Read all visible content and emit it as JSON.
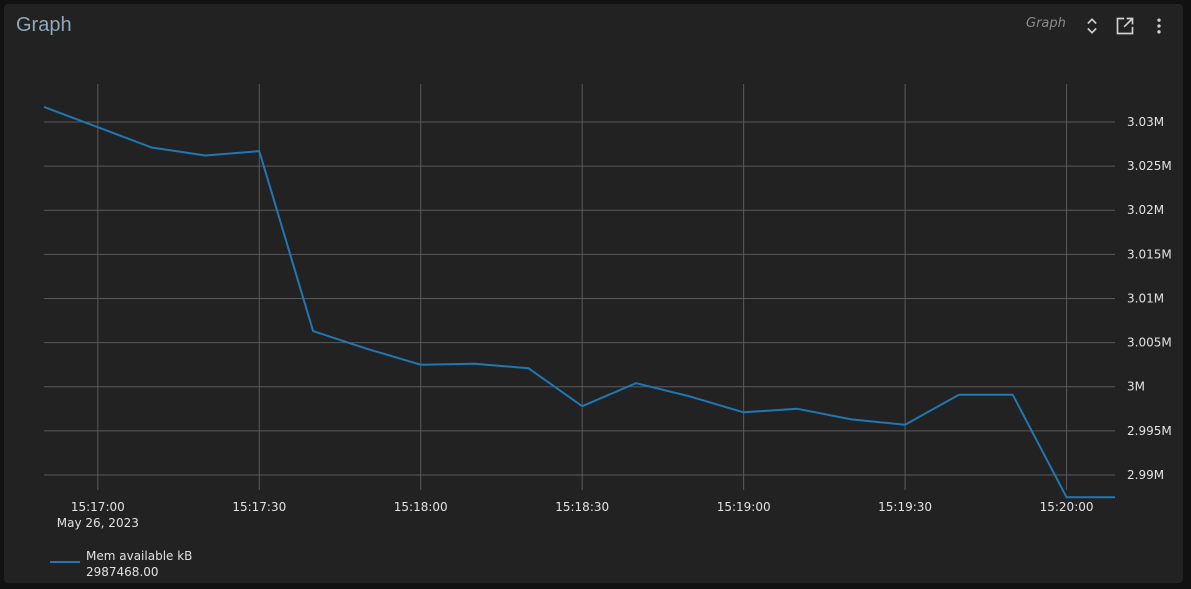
{
  "header": {
    "title": "Graph",
    "panel_type": "Graph",
    "icons": [
      "unfold-icon",
      "open-in-new-icon",
      "more-vert-icon"
    ]
  },
  "chart_data": {
    "type": "line",
    "xlabel": "",
    "ylabel": "",
    "x_ticks": [
      "15:17:00",
      "15:17:30",
      "15:18:00",
      "15:18:30",
      "15:19:00",
      "15:19:30",
      "15:20:00"
    ],
    "x_date_label": "May 26, 2023",
    "y_ticks": [
      "2.99M",
      "2.995M",
      "3M",
      "3.005M",
      "3.01M",
      "3.015M",
      "3.02M",
      "3.025M",
      "3.03M"
    ],
    "y_tick_values": [
      2990000,
      2995000,
      3000000,
      3005000,
      3010000,
      3015000,
      3020000,
      3025000,
      3030000
    ],
    "ylim": [
      2988300,
      3034300
    ],
    "xlim": [
      "15:16:50",
      "15:20:09"
    ],
    "grid": true,
    "legend_position": "bottom-left",
    "series": [
      {
        "name": "Mem available kB",
        "color": "#1f77b4",
        "last_value": "2987468.00",
        "x": [
          "15:16:50",
          "15:17:00",
          "15:17:10",
          "15:17:20",
          "15:17:30",
          "15:17:40",
          "15:17:50",
          "15:18:00",
          "15:18:10",
          "15:18:20",
          "15:18:30",
          "15:18:40",
          "15:18:50",
          "15:19:00",
          "15:19:10",
          "15:19:20",
          "15:19:30",
          "15:19:40",
          "15:19:50",
          "15:20:00",
          "15:20:09"
        ],
        "values": [
          3031700,
          3029400,
          3027100,
          3026200,
          3026700,
          3006300,
          3004300,
          3002500,
          3002600,
          3002100,
          2997800,
          3000400,
          2998900,
          2997100,
          2997500,
          2996300,
          2995700,
          2999100,
          2999100,
          2987468,
          2987468
        ]
      }
    ]
  }
}
